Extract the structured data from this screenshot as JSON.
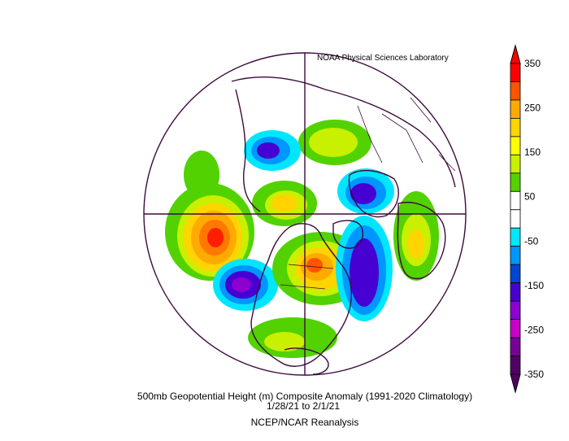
{
  "credit": "NOAA Physical Sciences Laboratory",
  "caption": {
    "line1": "500mb Geopotential Height (m) Composite Anomaly (1991-2020 Climatology)",
    "line2": "1/28/21   to 2/1/21",
    "line3": "NCEP/NCAR Reanalysis"
  },
  "colorbar": {
    "labels": [
      "350",
      "250",
      "150",
      "50",
      "-50",
      "-150",
      "-250",
      "-350"
    ],
    "colors": [
      "#ff0000",
      "#ff5500",
      "#ffaa00",
      "#ffd400",
      "#ffff00",
      "#c8f000",
      "#52d200",
      "#ffffff",
      "#ffffff",
      "#00e6ff",
      "#0096ff",
      "#0046d2",
      "#4600d2",
      "#8c00d2",
      "#c800c8",
      "#780096",
      "#500064"
    ]
  },
  "colors": {
    "map_lines": "#3c0a3c",
    "pos_strong": "#ff1e00",
    "neg_strong": "#4600c8"
  }
}
